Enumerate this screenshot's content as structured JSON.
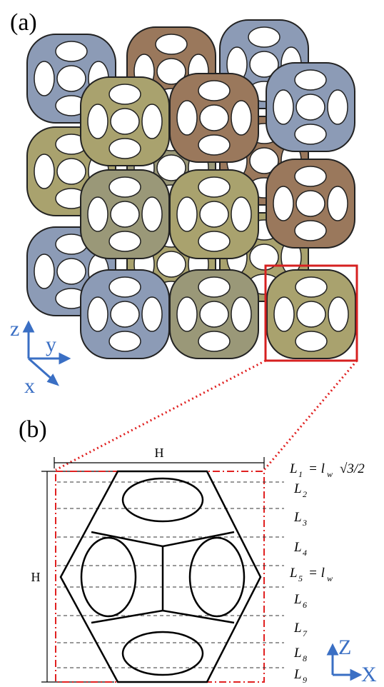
{
  "panel_a": {
    "label": "(a)",
    "axes": {
      "z": "z",
      "y": "y",
      "x": "x"
    }
  },
  "panel_b": {
    "label": "(b)",
    "width_label": "H",
    "height_label": "H",
    "levels": [
      {
        "symbol": "L",
        "index": "1"
      },
      {
        "symbol": "L",
        "index": "2"
      },
      {
        "symbol": "L",
        "index": "3"
      },
      {
        "symbol": "L",
        "index": "4"
      },
      {
        "symbol": "L",
        "index": "5"
      },
      {
        "symbol": "L",
        "index": "6"
      },
      {
        "symbol": "L",
        "index": "7"
      },
      {
        "symbol": "L",
        "index": "8"
      },
      {
        "symbol": "L",
        "index": "9"
      }
    ],
    "eq_1": {
      "lhs": "= l",
      "sub": "w",
      "tail": "√3/2"
    },
    "eq_5": {
      "lhs": "= l",
      "sub": "w"
    },
    "axes": {
      "z": "Z",
      "x": "X"
    }
  }
}
